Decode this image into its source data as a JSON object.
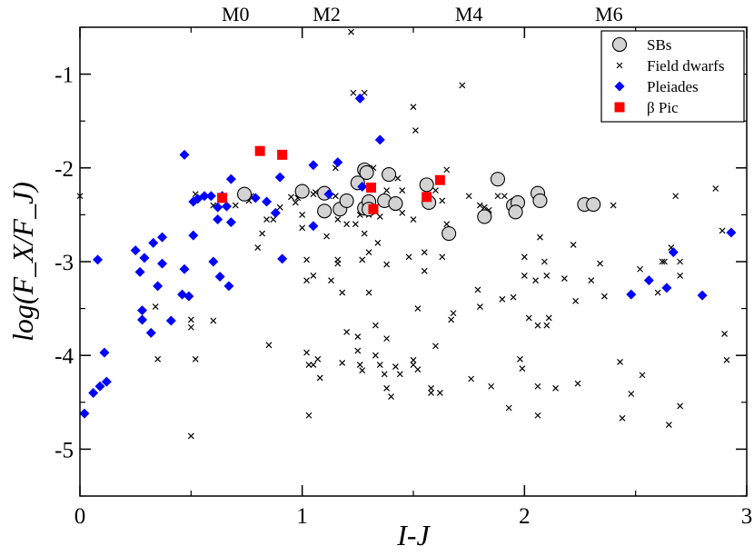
{
  "chart_data": {
    "type": "scatter",
    "xlabel": "I-J",
    "ylabel": "log(F_X/F_J)",
    "xlim": [
      0,
      3
    ],
    "ylim": [
      -5.5,
      -0.5
    ],
    "x_ticks": [
      0,
      1,
      2,
      3
    ],
    "y_ticks": [
      -5,
      -4,
      -3,
      -2,
      -1
    ],
    "top_axis": {
      "labels": [
        "M0",
        "M2",
        "M4",
        "M6"
      ],
      "positions": [
        0.7,
        1.11,
        1.75,
        2.38
      ]
    },
    "legend": {
      "placement": "top-right",
      "entries": [
        "SBs",
        "Field dwarfs",
        "Pleiades",
        "β Pic"
      ]
    },
    "series": [
      {
        "name": "SBs",
        "marker": "circle",
        "color": "#d3d3d3",
        "points": [
          [
            0.74,
            -2.28
          ],
          [
            1.0,
            -2.25
          ],
          [
            1.1,
            -2.27
          ],
          [
            1.1,
            -2.46
          ],
          [
            1.17,
            -2.44
          ],
          [
            1.2,
            -2.35
          ],
          [
            1.25,
            -2.16
          ],
          [
            1.28,
            -2.02
          ],
          [
            1.29,
            -2.05
          ],
          [
            1.28,
            -2.43
          ],
          [
            1.3,
            -2.36
          ],
          [
            1.3,
            -2.44
          ],
          [
            1.37,
            -2.35
          ],
          [
            1.39,
            -2.07
          ],
          [
            1.42,
            -2.38
          ],
          [
            1.56,
            -2.18
          ],
          [
            1.57,
            -2.37
          ],
          [
            1.66,
            -2.7
          ],
          [
            1.82,
            -2.52
          ],
          [
            1.88,
            -2.12
          ],
          [
            1.95,
            -2.4
          ],
          [
            1.97,
            -2.37
          ],
          [
            1.96,
            -2.47
          ],
          [
            2.06,
            -2.27
          ],
          [
            2.07,
            -2.35
          ],
          [
            2.27,
            -2.39
          ],
          [
            2.31,
            -2.39
          ]
        ]
      },
      {
        "name": "Field dwarfs",
        "marker": "x",
        "color": "#000000",
        "points": [
          [
            0.0,
            -2.3
          ],
          [
            0.34,
            -3.48
          ],
          [
            0.35,
            -4.04
          ],
          [
            0.5,
            -4.86
          ],
          [
            0.5,
            -3.62
          ],
          [
            0.5,
            -3.7
          ],
          [
            0.52,
            -4.04
          ],
          [
            0.6,
            -3.63
          ],
          [
            0.6,
            -2.4
          ],
          [
            0.7,
            -2.4
          ],
          [
            0.76,
            -2.35
          ],
          [
            0.77,
            -2.3
          ],
          [
            0.8,
            -2.85
          ],
          [
            0.82,
            -2.7
          ],
          [
            0.84,
            -2.55
          ],
          [
            0.85,
            -3.89
          ],
          [
            0.87,
            -2.55
          ],
          [
            0.9,
            -2.42
          ],
          [
            0.95,
            -2.31
          ],
          [
            0.97,
            -2.37
          ],
          [
            0.98,
            -2.32
          ],
          [
            1.0,
            -2.5
          ],
          [
            1.0,
            -2.64
          ],
          [
            1.02,
            -2.98
          ],
          [
            1.02,
            -3.2
          ],
          [
            1.02,
            -3.97
          ],
          [
            1.03,
            -4.1
          ],
          [
            1.03,
            -4.64
          ],
          [
            1.05,
            -2.28
          ],
          [
            1.05,
            -3.15
          ],
          [
            1.05,
            -4.1
          ],
          [
            1.07,
            -4.04
          ],
          [
            1.08,
            -4.24
          ],
          [
            1.1,
            -2.5
          ],
          [
            1.11,
            -2.73
          ],
          [
            1.12,
            -2.3
          ],
          [
            1.13,
            -3.2
          ],
          [
            1.15,
            -2.3
          ],
          [
            1.15,
            -2.0
          ],
          [
            1.15,
            -2.3
          ],
          [
            1.16,
            -2.55
          ],
          [
            1.16,
            -2.98
          ],
          [
            1.16,
            -3.02
          ],
          [
            1.18,
            -3.33
          ],
          [
            1.18,
            -4.08
          ],
          [
            1.2,
            -2.6
          ],
          [
            1.2,
            -3.75
          ],
          [
            1.23,
            -1.2
          ],
          [
            1.24,
            -2.6
          ],
          [
            1.25,
            -3.8
          ],
          [
            1.25,
            -3.95
          ],
          [
            1.26,
            -2.5
          ],
          [
            1.26,
            -4.1
          ],
          [
            1.27,
            -2.98
          ],
          [
            1.27,
            -4.16
          ],
          [
            1.28,
            -1.2
          ],
          [
            1.28,
            -2.7
          ],
          [
            1.3,
            -2.5
          ],
          [
            1.3,
            -2.9
          ],
          [
            1.3,
            -3.33
          ],
          [
            1.32,
            -2.0
          ],
          [
            1.33,
            -3.68
          ],
          [
            1.33,
            -4.0
          ],
          [
            1.34,
            -2.8
          ],
          [
            1.35,
            -2.52
          ],
          [
            1.35,
            -4.1
          ],
          [
            1.37,
            -4.2
          ],
          [
            1.38,
            -3.03
          ],
          [
            1.38,
            -3.82
          ],
          [
            1.38,
            -4.35
          ],
          [
            1.4,
            -4.44
          ],
          [
            1.42,
            -4.12
          ],
          [
            1.43,
            -2.11
          ],
          [
            1.44,
            -4.2
          ],
          [
            1.45,
            -2.48
          ],
          [
            1.48,
            -2.95
          ],
          [
            1.5,
            -1.35
          ],
          [
            1.5,
            -2.55
          ],
          [
            1.5,
            -4.05
          ],
          [
            1.5,
            -4.1
          ],
          [
            1.51,
            -1.6
          ],
          [
            1.52,
            -4.15
          ],
          [
            1.52,
            -3.5
          ],
          [
            1.55,
            -2.9
          ],
          [
            1.55,
            -3.1
          ],
          [
            1.58,
            -4.35
          ],
          [
            1.58,
            -4.4
          ],
          [
            1.6,
            -3.9
          ],
          [
            1.62,
            -4.4
          ],
          [
            1.63,
            -2.35
          ],
          [
            1.63,
            -2.95
          ],
          [
            1.65,
            -2.6
          ],
          [
            1.65,
            -2.02
          ],
          [
            1.67,
            -3.62
          ],
          [
            1.68,
            -3.55
          ],
          [
            1.72,
            -1.12
          ],
          [
            1.75,
            -2.3
          ],
          [
            1.76,
            -4.25
          ],
          [
            1.79,
            -3.3
          ],
          [
            1.8,
            -2.4
          ],
          [
            1.8,
            -3.48
          ],
          [
            1.82,
            -2.42
          ],
          [
            1.84,
            -2.45
          ],
          [
            1.84,
            -2.5
          ],
          [
            1.85,
            -4.33
          ],
          [
            1.88,
            -2.3
          ],
          [
            1.91,
            -2.3
          ],
          [
            1.9,
            -3.4
          ],
          [
            1.93,
            -4.56
          ],
          [
            1.95,
            -3.38
          ],
          [
            1.98,
            -4.04
          ],
          [
            1.99,
            -4.14
          ],
          [
            2.0,
            -2.95
          ],
          [
            2.0,
            -3.15
          ],
          [
            2.02,
            -3.6
          ],
          [
            2.05,
            -3.2
          ],
          [
            2.06,
            -3.68
          ],
          [
            2.06,
            -4.33
          ],
          [
            2.06,
            -4.64
          ],
          [
            2.07,
            -2.74
          ],
          [
            2.09,
            -3.0
          ],
          [
            2.1,
            -3.15
          ],
          [
            2.1,
            -3.68
          ],
          [
            2.11,
            -3.6
          ],
          [
            2.14,
            -4.35
          ],
          [
            2.18,
            -3.18
          ],
          [
            2.22,
            -2.82
          ],
          [
            2.23,
            -3.42
          ],
          [
            2.24,
            -4.3
          ],
          [
            2.3,
            -3.2
          ],
          [
            2.34,
            -3.02
          ],
          [
            2.36,
            -3.37
          ],
          [
            2.4,
            -2.4
          ],
          [
            2.43,
            -4.07
          ],
          [
            2.44,
            -4.67
          ],
          [
            2.48,
            -4.41
          ],
          [
            2.52,
            -3.08
          ],
          [
            2.53,
            -4.21
          ],
          [
            2.6,
            -3.33
          ],
          [
            2.62,
            -3.0
          ],
          [
            2.63,
            -3.0
          ],
          [
            2.65,
            -4.74
          ],
          [
            2.66,
            -2.85
          ],
          [
            2.68,
            -2.3
          ],
          [
            2.7,
            -4.54
          ],
          [
            2.7,
            -3.0
          ],
          [
            2.7,
            -3.15
          ],
          [
            2.86,
            -2.22
          ],
          [
            2.89,
            -2.67
          ],
          [
            2.91,
            -4.05
          ],
          [
            2.9,
            -3.77
          ],
          [
            1.06,
            -2.26
          ],
          [
            1.38,
            -2.24
          ],
          [
            1.4,
            -2.38
          ],
          [
            1.45,
            -2.24
          ],
          [
            1.22,
            -0.55
          ],
          [
            1.6,
            -2.24
          ],
          [
            0.52,
            -2.28
          ]
        ]
      },
      {
        "name": "Pleiades",
        "marker": "diamond",
        "color": "#0000ff",
        "points": [
          [
            0.02,
            -4.62
          ],
          [
            0.06,
            -4.4
          ],
          [
            0.08,
            -2.98
          ],
          [
            0.09,
            -4.33
          ],
          [
            0.11,
            -3.97
          ],
          [
            0.12,
            -4.28
          ],
          [
            0.25,
            -2.88
          ],
          [
            0.27,
            -3.11
          ],
          [
            0.28,
            -3.62
          ],
          [
            0.28,
            -3.52
          ],
          [
            0.29,
            -2.96
          ],
          [
            0.32,
            -3.76
          ],
          [
            0.33,
            -2.8
          ],
          [
            0.35,
            -3.26
          ],
          [
            0.37,
            -3.02
          ],
          [
            0.37,
            -2.74
          ],
          [
            0.41,
            -3.63
          ],
          [
            0.46,
            -3.35
          ],
          [
            0.47,
            -1.86
          ],
          [
            0.47,
            -3.08
          ],
          [
            0.49,
            -3.37
          ],
          [
            0.51,
            -2.72
          ],
          [
            0.51,
            -2.36
          ],
          [
            0.53,
            -2.33
          ],
          [
            0.56,
            -2.3
          ],
          [
            0.59,
            -2.3
          ],
          [
            0.6,
            -3.0
          ],
          [
            0.62,
            -2.42
          ],
          [
            0.62,
            -2.55
          ],
          [
            0.63,
            -3.16
          ],
          [
            0.64,
            -2.3
          ],
          [
            0.66,
            -2.41
          ],
          [
            0.67,
            -3.26
          ],
          [
            0.68,
            -2.12
          ],
          [
            0.68,
            -2.58
          ],
          [
            0.79,
            -2.32
          ],
          [
            0.84,
            -2.36
          ],
          [
            0.88,
            -2.48
          ],
          [
            0.9,
            -2.1
          ],
          [
            0.91,
            -2.97
          ],
          [
            1.05,
            -1.97
          ],
          [
            1.05,
            -2.62
          ],
          [
            1.12,
            -2.28
          ],
          [
            1.16,
            -1.94
          ],
          [
            1.26,
            -1.26
          ],
          [
            1.27,
            -2.2
          ],
          [
            1.35,
            -1.7
          ],
          [
            2.48,
            -3.35
          ],
          [
            2.56,
            -3.2
          ],
          [
            2.64,
            -3.28
          ],
          [
            2.67,
            -2.9
          ],
          [
            2.8,
            -3.36
          ],
          [
            2.93,
            -2.69
          ]
        ]
      },
      {
        "name": "β Pic",
        "marker": "square",
        "color": "#ff0000",
        "points": [
          [
            0.64,
            -2.32
          ],
          [
            0.81,
            -1.82
          ],
          [
            0.91,
            -1.86
          ],
          [
            1.31,
            -2.21
          ],
          [
            1.32,
            -2.44
          ],
          [
            1.56,
            -2.31
          ],
          [
            1.62,
            -2.13
          ]
        ]
      }
    ]
  }
}
